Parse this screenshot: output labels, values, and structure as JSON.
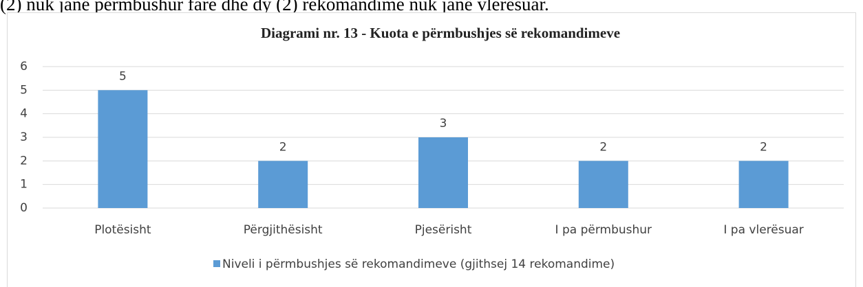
{
  "text": "(2) nuk janë përmbushur fare dhe dy (2) rekomandime nuk janë vlerësuar.",
  "chart_data": {
    "type": "bar",
    "title": "Diagrami nr. 13 - Kuota e përmbushjes së rekomandimeve",
    "categories": [
      "Plotësisht",
      "Përgjithësisht",
      "Pjesërisht",
      "I pa përmbushur",
      "I pa vlerësuar"
    ],
    "series": [
      {
        "name": "Niveli i përmbushjes së rekomandimeve (gjithsej 14 rekomandime)",
        "color": "#5b9bd5",
        "values": [
          5,
          2,
          3,
          2,
          2
        ]
      }
    ],
    "ylim": [
      0,
      6
    ],
    "yticks": [
      0,
      1,
      2,
      3,
      4,
      5,
      6
    ],
    "grid": true,
    "legend": "bottom"
  }
}
